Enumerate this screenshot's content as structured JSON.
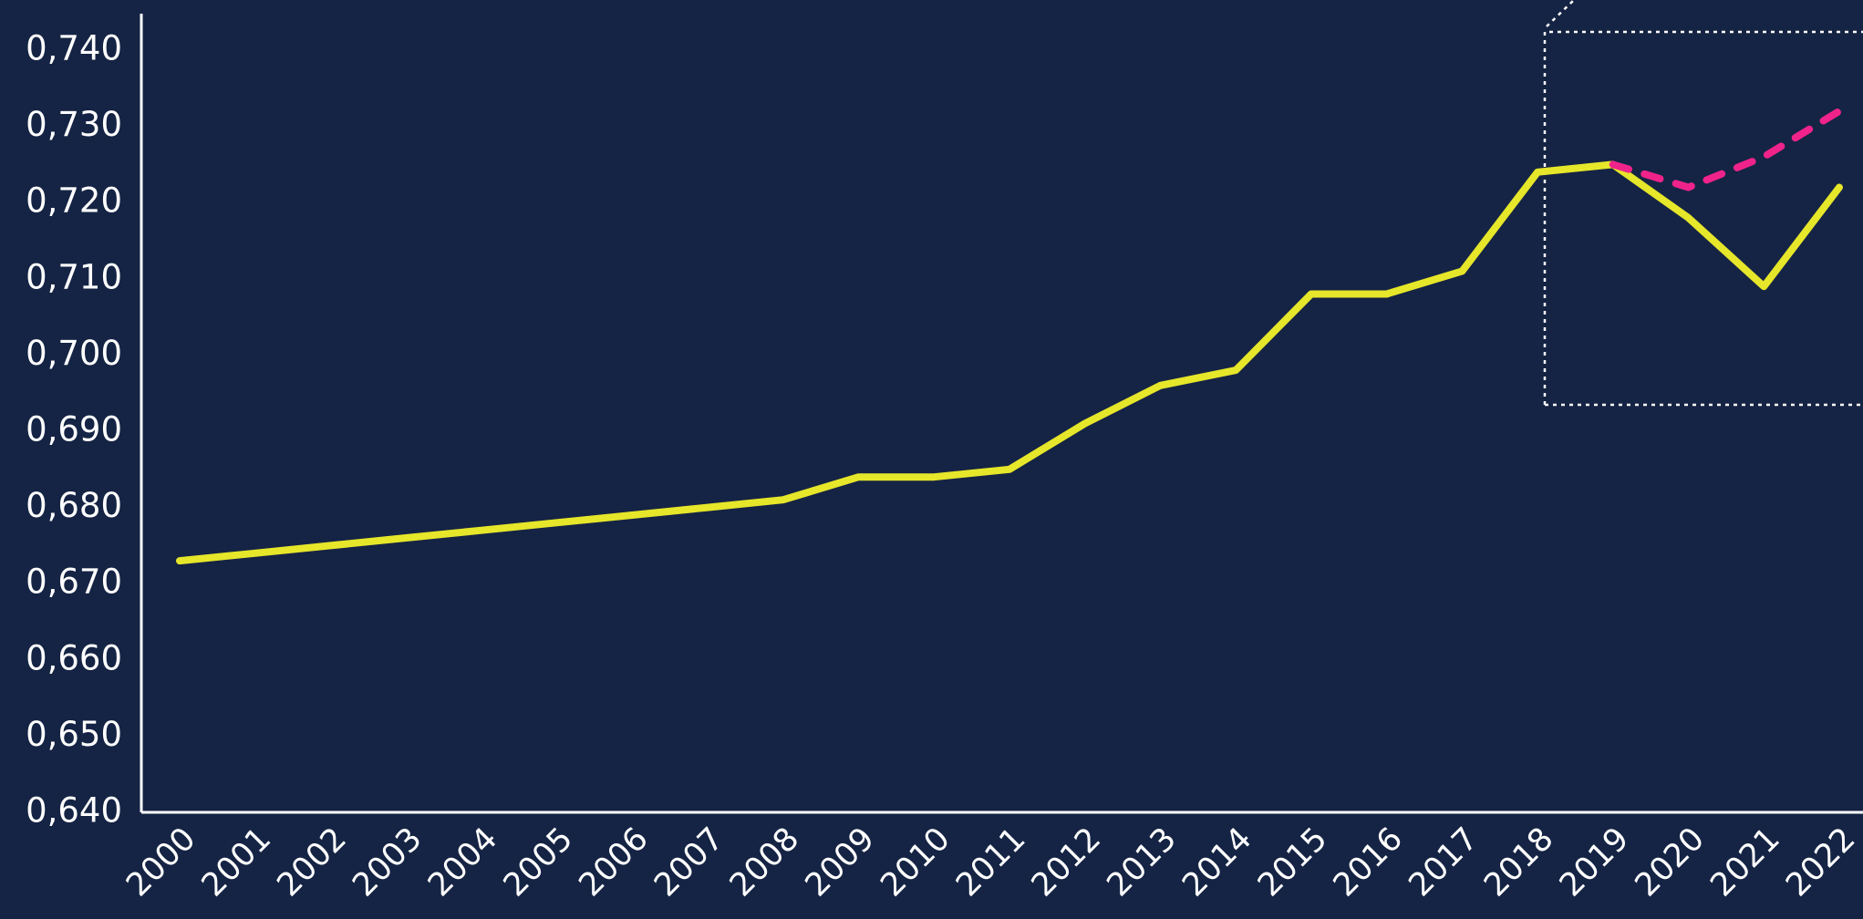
{
  "chart_data": {
    "type": "line",
    "x": [
      "2000",
      "2001",
      "2002",
      "2003",
      "2004",
      "2005",
      "2006",
      "2007",
      "2008",
      "2009",
      "2010",
      "2011",
      "2012",
      "2013",
      "2014",
      "2015",
      "2016",
      "2017",
      "2018",
      "2019",
      "2020",
      "2021",
      "2022"
    ],
    "series": [
      {
        "color": "#e6e62a",
        "dashed": false,
        "values": [
          0.673,
          0.674,
          0.675,
          0.676,
          0.677,
          0.678,
          0.679,
          0.68,
          0.681,
          0.684,
          0.684,
          0.685,
          0.691,
          0.696,
          0.698,
          0.708,
          0.708,
          0.711,
          0.724,
          0.725,
          0.718,
          0.709,
          0.722
        ]
      },
      {
        "color": "#f0238a",
        "dashed": true,
        "values": [
          null,
          null,
          null,
          null,
          null,
          null,
          null,
          null,
          null,
          null,
          null,
          null,
          null,
          null,
          null,
          null,
          null,
          null,
          null,
          0.725,
          0.722,
          0.726,
          0.732
        ]
      }
    ],
    "ylim": [
      0.64,
      0.74
    ],
    "yticks": [
      {
        "value": 0.64,
        "label": "0,640"
      },
      {
        "value": 0.65,
        "label": "0,650"
      },
      {
        "value": 0.66,
        "label": "0,660"
      },
      {
        "value": 0.67,
        "label": "0,670"
      },
      {
        "value": 0.68,
        "label": "0,680"
      },
      {
        "value": 0.69,
        "label": "0,690"
      },
      {
        "value": 0.7,
        "label": "0,700"
      },
      {
        "value": 0.71,
        "label": "0,710"
      },
      {
        "value": 0.72,
        "label": "0,720"
      },
      {
        "value": 0.73,
        "label": "0,730"
      },
      {
        "value": 0.74,
        "label": "0,740"
      }
    ],
    "grid": false
  }
}
